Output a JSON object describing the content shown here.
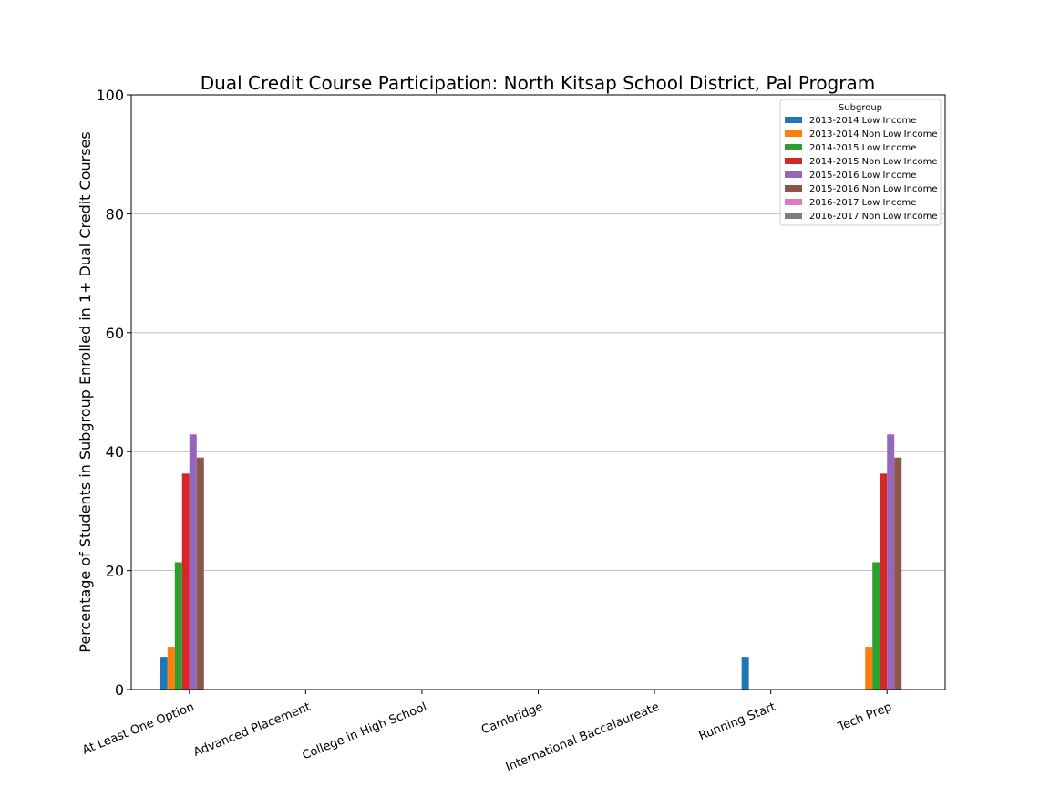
{
  "chart_data": {
    "type": "bar",
    "title": "Dual Credit Course Participation: North Kitsap School District, Pal Program",
    "xlabel": "",
    "ylabel": "Percentage of Students in Subgroup Enrolled in 1+ Dual Credit Courses",
    "ylim": [
      0,
      100
    ],
    "yticks": [
      "0",
      "20",
      "40",
      "60",
      "80",
      "100"
    ],
    "grid": "y",
    "legend_title": "Subgroup",
    "legend_position": "top-right",
    "categories": [
      "At Least One Option",
      "Advanced Placement",
      "College in High School",
      "Cambridge",
      "International Baccalaureate",
      "Running Start",
      "Tech Prep"
    ],
    "series": [
      {
        "name": "2013-2014 Low Income",
        "color": "#1f77b4",
        "values": [
          5.5,
          0,
          0,
          0,
          0,
          5.5,
          0
        ]
      },
      {
        "name": "2013-2014 Non Low Income",
        "color": "#ff7f0e",
        "values": [
          7.2,
          0,
          0,
          0,
          0,
          0,
          7.2
        ]
      },
      {
        "name": "2014-2015 Low Income",
        "color": "#2ca02c",
        "values": [
          21.4,
          0,
          0,
          0,
          0,
          0,
          21.4
        ]
      },
      {
        "name": "2014-2015 Non Low Income",
        "color": "#d62728",
        "values": [
          36.3,
          0,
          0,
          0,
          0,
          0,
          36.3
        ]
      },
      {
        "name": "2015-2016 Low Income",
        "color": "#9467bd",
        "values": [
          42.9,
          0,
          0,
          0,
          0,
          0,
          42.9
        ]
      },
      {
        "name": "2015-2016 Non Low Income",
        "color": "#8c564b",
        "values": [
          39.0,
          0,
          0,
          0,
          0,
          0,
          39.0
        ]
      },
      {
        "name": "2016-2017 Low Income",
        "color": "#e377c2",
        "values": [
          0,
          0,
          0,
          0,
          0,
          0,
          0
        ]
      },
      {
        "name": "2016-2017 Non Low Income",
        "color": "#7f7f7f",
        "values": [
          0,
          0,
          0,
          0,
          0,
          0,
          0
        ]
      }
    ]
  }
}
